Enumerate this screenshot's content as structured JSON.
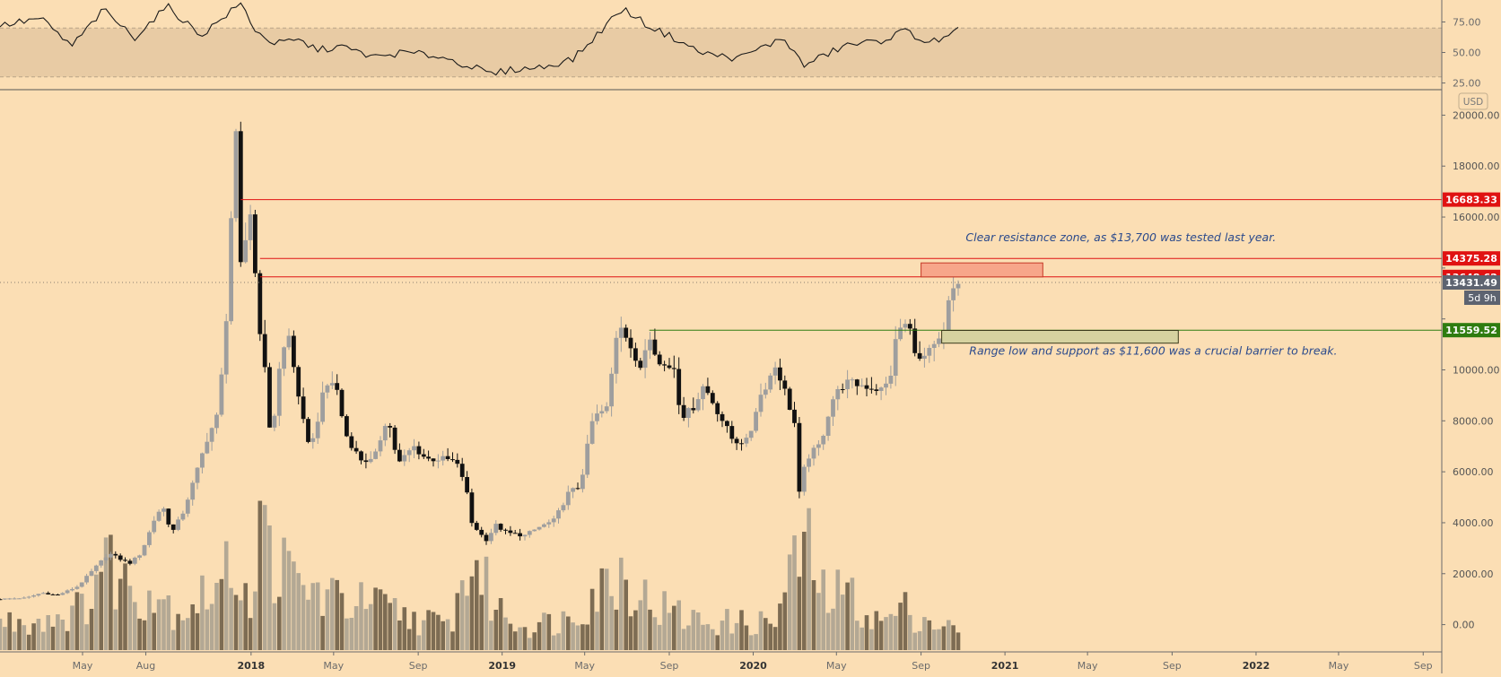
{
  "chart_data": {
    "type": "candlestick",
    "currency_label": "USD",
    "price_axis": {
      "ylim": [
        -1000,
        21000
      ],
      "ticks": [
        0,
        2000,
        4000,
        6000,
        8000,
        10000,
        12000,
        14000,
        16000,
        18000,
        20000
      ],
      "tick_labels": [
        "0.00",
        "2000.00",
        "4000.00",
        "6000.00",
        "8000.00",
        "10000.00",
        "",
        "",
        "16000.00",
        "18000.00",
        "20000.00"
      ]
    },
    "rsi_axis": {
      "ylim": [
        21,
        93
      ],
      "ticks": [
        25,
        50,
        75
      ],
      "tick_labels": [
        "25.00",
        "50.00",
        "75.00"
      ],
      "band": [
        30,
        70
      ]
    },
    "time_axis": {
      "start": "2017-01-01",
      "end": "2022-09-15",
      "labels": [
        {
          "date": "2017-05-01",
          "label": "May",
          "bold": false
        },
        {
          "date": "2017-08-01",
          "label": "Aug",
          "bold": false
        },
        {
          "date": "2018-01-01",
          "label": "2018",
          "bold": true
        },
        {
          "date": "2018-05-01",
          "label": "May",
          "bold": false
        },
        {
          "date": "2018-09-01",
          "label": "Sep",
          "bold": false
        },
        {
          "date": "2019-01-01",
          "label": "2019",
          "bold": true
        },
        {
          "date": "2019-05-01",
          "label": "May",
          "bold": false
        },
        {
          "date": "2019-09-01",
          "label": "Sep",
          "bold": false
        },
        {
          "date": "2020-01-01",
          "label": "2020",
          "bold": true
        },
        {
          "date": "2020-05-01",
          "label": "May",
          "bold": false
        },
        {
          "date": "2020-09-01",
          "label": "Sep",
          "bold": false
        },
        {
          "date": "2021-01-01",
          "label": "2021",
          "bold": true
        },
        {
          "date": "2021-05-01",
          "label": "May",
          "bold": false
        },
        {
          "date": "2021-09-01",
          "label": "Sep",
          "bold": false
        },
        {
          "date": "2022-01-01",
          "label": "2022",
          "bold": true
        },
        {
          "date": "2022-05-01",
          "label": "May",
          "bold": false
        },
        {
          "date": "2022-09-01",
          "label": "Sep",
          "bold": false
        }
      ]
    },
    "price_path": [
      [
        "2017-01-01",
        1000
      ],
      [
        "2017-02-15",
        1050
      ],
      [
        "2017-03-10",
        1250
      ],
      [
        "2017-04-01",
        1150
      ],
      [
        "2017-05-01",
        1500
      ],
      [
        "2017-05-25",
        2200
      ],
      [
        "2017-06-15",
        2800
      ],
      [
        "2017-07-15",
        2400
      ],
      [
        "2017-08-01",
        2800
      ],
      [
        "2017-08-20",
        4100
      ],
      [
        "2017-09-01",
        4700
      ],
      [
        "2017-09-15",
        3600
      ],
      [
        "2017-10-01",
        4400
      ],
      [
        "2017-10-20",
        5900
      ],
      [
        "2017-11-05",
        7300
      ],
      [
        "2017-11-20",
        8200
      ],
      [
        "2017-12-01",
        11000
      ],
      [
        "2017-12-10",
        16000
      ],
      [
        "2017-12-17",
        19000
      ],
      [
        "2017-12-24",
        14000
      ],
      [
        "2018-01-07",
        16200
      ],
      [
        "2018-01-14",
        13800
      ],
      [
        "2018-01-21",
        11600
      ],
      [
        "2018-02-01",
        9000
      ],
      [
        "2018-02-06",
        7000
      ],
      [
        "2018-02-20",
        10500
      ],
      [
        "2018-03-05",
        11400
      ],
      [
        "2018-03-20",
        8400
      ],
      [
        "2018-04-05",
        6900
      ],
      [
        "2018-04-25",
        9300
      ],
      [
        "2018-05-10",
        9600
      ],
      [
        "2018-05-25",
        7500
      ],
      [
        "2018-06-15",
        6500
      ],
      [
        "2018-07-05",
        6400
      ],
      [
        "2018-07-25",
        8200
      ],
      [
        "2018-08-10",
        6300
      ],
      [
        "2018-09-01",
        7000
      ],
      [
        "2018-09-20",
        6500
      ],
      [
        "2018-10-15",
        6500
      ],
      [
        "2018-11-01",
        6400
      ],
      [
        "2018-11-15",
        5600
      ],
      [
        "2018-11-25",
        4000
      ],
      [
        "2018-12-15",
        3300
      ],
      [
        "2018-12-30",
        3900
      ],
      [
        "2019-01-15",
        3600
      ],
      [
        "2019-02-10",
        3500
      ],
      [
        "2019-03-01",
        3800
      ],
      [
        "2019-03-25",
        4100
      ],
      [
        "2019-04-15",
        5200
      ],
      [
        "2019-05-01",
        5400
      ],
      [
        "2019-05-20",
        8100
      ],
      [
        "2019-06-10",
        8500
      ],
      [
        "2019-06-26",
        12000
      ],
      [
        "2019-07-10",
        11300
      ],
      [
        "2019-07-25",
        9800
      ],
      [
        "2019-08-10",
        11500
      ],
      [
        "2019-08-25",
        10200
      ],
      [
        "2019-09-15",
        10100
      ],
      [
        "2019-09-25",
        8200
      ],
      [
        "2019-10-10",
        8400
      ],
      [
        "2019-10-28",
        9400
      ],
      [
        "2019-11-15",
        8500
      ],
      [
        "2019-12-10",
        7200
      ],
      [
        "2020-01-01",
        7200
      ],
      [
        "2020-01-15",
        8800
      ],
      [
        "2020-02-10",
        10200
      ],
      [
        "2020-02-25",
        9000
      ],
      [
        "2020-03-08",
        7900
      ],
      [
        "2020-03-14",
        5000
      ],
      [
        "2020-03-25",
        6500
      ],
      [
        "2020-04-15",
        7100
      ],
      [
        "2020-05-01",
        8800
      ],
      [
        "2020-05-20",
        9500
      ],
      [
        "2020-06-15",
        9400
      ],
      [
        "2020-07-15",
        9200
      ],
      [
        "2020-07-25",
        9700
      ],
      [
        "2020-08-05",
        11600
      ],
      [
        "2020-08-20",
        11800
      ],
      [
        "2020-09-05",
        10300
      ],
      [
        "2020-09-25",
        10800
      ],
      [
        "2020-10-10",
        11300
      ],
      [
        "2020-10-20",
        12900
      ],
      [
        "2020-10-30",
        13431
      ]
    ],
    "volume_path": [
      [
        "2017-01-01",
        800
      ],
      [
        "2017-03-01",
        900
      ],
      [
        "2017-05-01",
        1200
      ],
      [
        "2017-06-01",
        2700
      ],
      [
        "2017-07-15",
        1700
      ],
      [
        "2017-08-15",
        1800
      ],
      [
        "2017-09-15",
        1100
      ],
      [
        "2017-10-15",
        1500
      ],
      [
        "2017-11-20",
        1900
      ],
      [
        "2017-12-10",
        2700
      ],
      [
        "2017-12-31",
        1400
      ],
      [
        "2018-01-15",
        3500
      ],
      [
        "2018-02-05",
        2600
      ],
      [
        "2018-03-10",
        1900
      ],
      [
        "2018-05-01",
        1500
      ],
      [
        "2018-07-01",
        1300
      ],
      [
        "2018-09-01",
        900
      ],
      [
        "2018-10-15",
        700
      ],
      [
        "2018-11-20",
        2700
      ],
      [
        "2018-12-20",
        1300
      ],
      [
        "2019-02-01",
        700
      ],
      [
        "2019-04-01",
        900
      ],
      [
        "2019-05-20",
        1800
      ],
      [
        "2019-06-26",
        2300
      ],
      [
        "2019-08-01",
        1400
      ],
      [
        "2019-10-01",
        900
      ],
      [
        "2019-12-01",
        800
      ],
      [
        "2020-02-01",
        800
      ],
      [
        "2020-03-14",
        3200
      ],
      [
        "2020-04-15",
        1500
      ],
      [
        "2020-05-15",
        1700
      ],
      [
        "2020-07-01",
        800
      ],
      [
        "2020-08-10",
        1200
      ],
      [
        "2020-09-10",
        900
      ],
      [
        "2020-10-30",
        500
      ]
    ],
    "rsi_path": [
      [
        "2017-01-01",
        72
      ],
      [
        "2017-03-01",
        78
      ],
      [
        "2017-04-15",
        55
      ],
      [
        "2017-06-01",
        85
      ],
      [
        "2017-07-15",
        62
      ],
      [
        "2017-09-01",
        88
      ],
      [
        "2017-10-20",
        64
      ],
      [
        "2017-12-17",
        90
      ],
      [
        "2018-01-10",
        66
      ],
      [
        "2018-02-06",
        57
      ],
      [
        "2018-03-10",
        60
      ],
      [
        "2018-04-10",
        52
      ],
      [
        "2018-05-10",
        55
      ],
      [
        "2018-07-01",
        46
      ],
      [
        "2018-08-10",
        50
      ],
      [
        "2018-10-01",
        47
      ],
      [
        "2018-11-20",
        38
      ],
      [
        "2018-12-15",
        32
      ],
      [
        "2019-01-15",
        36
      ],
      [
        "2019-03-01",
        38
      ],
      [
        "2019-04-15",
        45
      ],
      [
        "2019-05-15",
        62
      ],
      [
        "2019-06-10",
        78
      ],
      [
        "2019-06-26",
        86
      ],
      [
        "2019-08-01",
        72
      ],
      [
        "2019-09-15",
        60
      ],
      [
        "2019-10-15",
        50
      ],
      [
        "2019-12-10",
        45
      ],
      [
        "2020-01-10",
        53
      ],
      [
        "2020-02-15",
        62
      ],
      [
        "2020-03-14",
        39
      ],
      [
        "2020-04-15",
        48
      ],
      [
        "2020-05-15",
        56
      ],
      [
        "2020-07-01",
        59
      ],
      [
        "2020-08-10",
        68
      ],
      [
        "2020-09-10",
        58
      ],
      [
        "2020-10-10",
        62
      ],
      [
        "2020-10-30",
        71
      ]
    ],
    "horizontal_levels": [
      {
        "value": 16683.33,
        "label": "16683.33",
        "color": "#e01212",
        "start": "2017-12-17"
      },
      {
        "value": 14375.28,
        "label": "14375.28",
        "color": "#e01212",
        "start": "2018-01-14"
      },
      {
        "value": 13648.62,
        "label": "13648.62",
        "color": "#e01212",
        "start": "2018-01-14"
      },
      {
        "value": 11559.52,
        "label": "11559.52",
        "color": "#2e7c10",
        "start": "2019-08-03"
      }
    ],
    "current_price": {
      "value": 13431.49,
      "label": "13431.49",
      "countdown": "5d 9h",
      "color": "#5d6370"
    },
    "zones": [
      {
        "type": "resistance",
        "start": "2020-09-01",
        "end": "2021-02-25",
        "top": 14200,
        "bottom": 13650,
        "fill": "#f7a68a",
        "stroke": "#c53a26"
      },
      {
        "type": "support",
        "start": "2020-10-01",
        "end": "2021-09-10",
        "top": 11550,
        "bottom": 11050,
        "fill": "#d6d2a0",
        "stroke": "#3b3b1c"
      }
    ],
    "annotations": [
      {
        "text": "Clear resistance zone, as $13,700 was tested last year.",
        "date": "2020-11-05",
        "value": 15050
      },
      {
        "text": "Range low and support as $11,600 was a crucial barrier to break.",
        "date": "2020-11-10",
        "value": 10600
      }
    ]
  }
}
